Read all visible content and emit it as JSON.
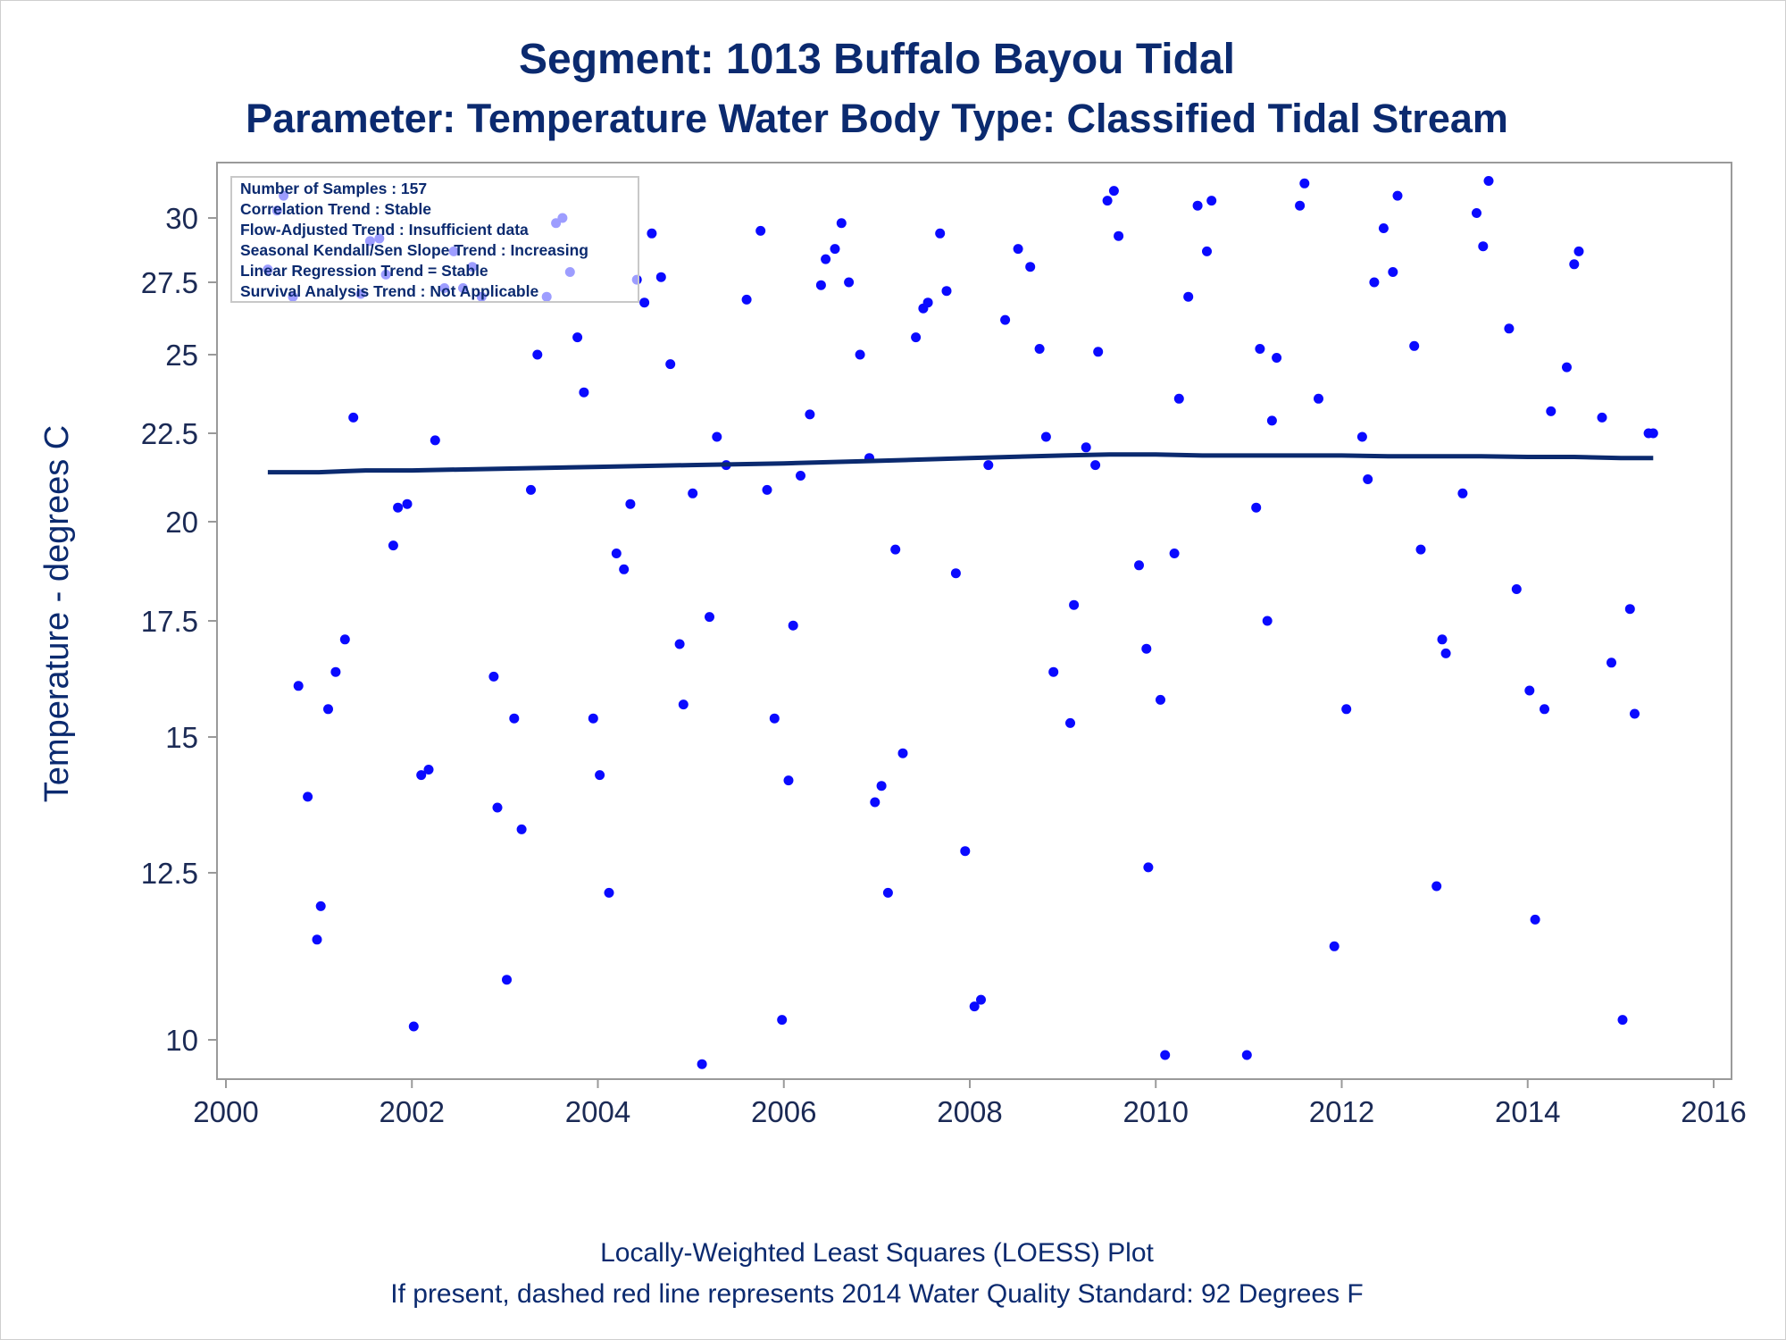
{
  "chart_data": {
    "type": "scatter",
    "title": "Segment: 1013  Buffalo Bayou Tidal",
    "subtitle": "Parameter: Temperature   Water Body Type: Classified Tidal Stream",
    "ylabel": "Temperature - degrees C",
    "xlabel": "",
    "footnotes": [
      "Locally-Weighted Least Squares (LOESS) Plot",
      "If present, dashed red line represents 2014 Water Quality Standard: 92   Degrees F"
    ],
    "stats_box": [
      "Number of Samples : 157",
      "Correlation Trend : Stable",
      "Flow-Adjusted Trend : Insufficient data",
      "Seasonal Kendall/Sen Slope Trend : Increasing",
      "Linear Regression Trend = Stable",
      "Survival Analysis Trend : Not Applicable"
    ],
    "x_ticks": [
      "2000",
      "2002",
      "2004",
      "2006",
      "2008",
      "2010",
      "2012",
      "2014",
      "2016"
    ],
    "y_ticks": [
      "10",
      "12.5",
      "15",
      "17.5",
      "20",
      "22.5",
      "25",
      "27.5",
      "30"
    ],
    "xlim": [
      2000,
      2016
    ],
    "ylim": [
      9.5,
      31.7
    ],
    "y_scale": "nonlinear (tick spacing widens at low values)",
    "y_tick_values": [
      10,
      12.5,
      15,
      17.5,
      20,
      22.5,
      25,
      27.5,
      30
    ],
    "grid": false,
    "legend": "none",
    "colors": {
      "points": "#0a0aff",
      "loess_line": "#0b2a6f",
      "text": "#0b2a6f",
      "axis": "#9a9a9a"
    },
    "series": [
      {
        "role": "samples",
        "points": [
          [
            2000.45,
            28.0
          ],
          [
            2000.55,
            30.3
          ],
          [
            2000.62,
            30.9
          ],
          [
            2000.72,
            27.0
          ],
          [
            2000.78,
            16.1
          ],
          [
            2000.88,
            13.9
          ],
          [
            2000.98,
            11.5
          ],
          [
            2001.02,
            12.0
          ],
          [
            2001.1,
            15.6
          ],
          [
            2001.18,
            16.4
          ],
          [
            2001.28,
            17.1
          ],
          [
            2001.37,
            23.0
          ],
          [
            2001.45,
            27.1
          ],
          [
            2001.55,
            29.1
          ],
          [
            2001.65,
            29.2
          ],
          [
            2001.72,
            27.8
          ],
          [
            2001.8,
            19.4
          ],
          [
            2001.85,
            20.4
          ],
          [
            2001.95,
            20.5
          ],
          [
            2002.02,
            10.2
          ],
          [
            2002.1,
            14.3
          ],
          [
            2002.18,
            14.4
          ],
          [
            2002.25,
            22.3
          ],
          [
            2002.35,
            27.3
          ],
          [
            2002.45,
            28.7
          ],
          [
            2002.55,
            27.3
          ],
          [
            2002.65,
            28.1
          ],
          [
            2002.75,
            27.0
          ],
          [
            2002.88,
            16.3
          ],
          [
            2002.92,
            13.7
          ],
          [
            2003.02,
            10.9
          ],
          [
            2003.1,
            15.4
          ],
          [
            2003.18,
            13.3
          ],
          [
            2003.28,
            20.9
          ],
          [
            2003.35,
            25.0
          ],
          [
            2003.45,
            27.0
          ],
          [
            2003.55,
            29.8
          ],
          [
            2003.62,
            30.0
          ],
          [
            2003.7,
            27.9
          ],
          [
            2003.78,
            25.6
          ],
          [
            2003.85,
            23.8
          ],
          [
            2003.95,
            15.4
          ],
          [
            2004.02,
            14.3
          ],
          [
            2004.12,
            12.2
          ],
          [
            2004.2,
            19.2
          ],
          [
            2004.28,
            18.8
          ],
          [
            2004.35,
            20.5
          ],
          [
            2004.42,
            27.6
          ],
          [
            2004.5,
            26.8
          ],
          [
            2004.58,
            29.4
          ],
          [
            2004.68,
            27.7
          ],
          [
            2004.78,
            24.7
          ],
          [
            2004.88,
            17.0
          ],
          [
            2004.92,
            15.7
          ],
          [
            2005.02,
            20.8
          ],
          [
            2005.12,
            9.6
          ],
          [
            2005.2,
            17.6
          ],
          [
            2005.28,
            22.4
          ],
          [
            2005.38,
            21.6
          ],
          [
            2005.6,
            26.9
          ],
          [
            2005.75,
            29.5
          ],
          [
            2005.82,
            20.9
          ],
          [
            2005.9,
            15.4
          ],
          [
            2005.98,
            10.3
          ],
          [
            2006.05,
            14.2
          ],
          [
            2006.1,
            17.4
          ],
          [
            2006.18,
            21.3
          ],
          [
            2006.28,
            23.1
          ],
          [
            2006.4,
            27.4
          ],
          [
            2006.45,
            28.4
          ],
          [
            2006.55,
            28.8
          ],
          [
            2006.62,
            29.8
          ],
          [
            2006.7,
            27.5
          ],
          [
            2006.82,
            25.0
          ],
          [
            2006.92,
            21.8
          ],
          [
            2006.98,
            13.8
          ],
          [
            2007.05,
            14.1
          ],
          [
            2007.12,
            12.2
          ],
          [
            2007.2,
            19.3
          ],
          [
            2007.28,
            14.7
          ],
          [
            2007.42,
            25.6
          ],
          [
            2007.5,
            26.6
          ],
          [
            2007.55,
            26.8
          ],
          [
            2007.68,
            29.4
          ],
          [
            2007.75,
            27.2
          ],
          [
            2007.85,
            18.7
          ],
          [
            2007.95,
            12.9
          ],
          [
            2008.05,
            10.5
          ],
          [
            2008.12,
            10.6
          ],
          [
            2008.2,
            21.6
          ],
          [
            2008.38,
            26.2
          ],
          [
            2008.52,
            28.8
          ],
          [
            2008.65,
            28.1
          ],
          [
            2008.75,
            25.2
          ],
          [
            2008.82,
            22.4
          ],
          [
            2008.9,
            16.4
          ],
          [
            2009.08,
            15.3
          ],
          [
            2009.12,
            17.9
          ],
          [
            2009.25,
            22.1
          ],
          [
            2009.35,
            21.6
          ],
          [
            2009.38,
            25.1
          ],
          [
            2009.48,
            30.7
          ],
          [
            2009.55,
            31.1
          ],
          [
            2009.6,
            29.3
          ],
          [
            2009.82,
            18.9
          ],
          [
            2009.9,
            16.9
          ],
          [
            2009.92,
            12.6
          ],
          [
            2010.05,
            15.8
          ],
          [
            2010.1,
            9.75
          ],
          [
            2010.2,
            19.2
          ],
          [
            2010.25,
            23.6
          ],
          [
            2010.35,
            27.0
          ],
          [
            2010.45,
            30.5
          ],
          [
            2010.55,
            28.7
          ],
          [
            2010.6,
            30.7
          ],
          [
            2010.98,
            9.75
          ],
          [
            2011.08,
            20.4
          ],
          [
            2011.12,
            25.2
          ],
          [
            2011.2,
            17.5
          ],
          [
            2011.25,
            22.9
          ],
          [
            2011.3,
            24.9
          ],
          [
            2011.55,
            30.5
          ],
          [
            2011.6,
            31.4
          ],
          [
            2011.75,
            23.6
          ],
          [
            2011.92,
            11.4
          ],
          [
            2012.05,
            15.6
          ],
          [
            2012.22,
            22.4
          ],
          [
            2012.28,
            21.2
          ],
          [
            2012.35,
            27.5
          ],
          [
            2012.45,
            29.6
          ],
          [
            2012.55,
            27.9
          ],
          [
            2012.6,
            30.9
          ],
          [
            2012.78,
            25.3
          ],
          [
            2012.85,
            19.3
          ],
          [
            2013.02,
            12.3
          ],
          [
            2013.08,
            17.1
          ],
          [
            2013.12,
            16.8
          ],
          [
            2013.3,
            20.8
          ],
          [
            2013.45,
            30.2
          ],
          [
            2013.52,
            28.9
          ],
          [
            2013.58,
            31.5
          ],
          [
            2013.8,
            25.9
          ],
          [
            2013.88,
            18.3
          ],
          [
            2014.02,
            16.0
          ],
          [
            2014.08,
            11.8
          ],
          [
            2014.18,
            15.6
          ],
          [
            2014.25,
            23.2
          ],
          [
            2014.42,
            24.6
          ],
          [
            2014.5,
            28.2
          ],
          [
            2014.55,
            28.7
          ],
          [
            2014.8,
            23.0
          ],
          [
            2014.9,
            16.6
          ],
          [
            2015.02,
            10.3
          ],
          [
            2015.1,
            17.8
          ],
          [
            2015.15,
            15.5
          ],
          [
            2015.3,
            22.5
          ],
          [
            2015.35,
            22.5
          ]
        ]
      },
      {
        "role": "loess",
        "points": [
          [
            2000.45,
            21.4
          ],
          [
            2001.0,
            21.4
          ],
          [
            2001.5,
            21.45
          ],
          [
            2002.0,
            21.45
          ],
          [
            2003.0,
            21.5
          ],
          [
            2004.0,
            21.55
          ],
          [
            2005.0,
            21.6
          ],
          [
            2006.0,
            21.65
          ],
          [
            2007.0,
            21.72
          ],
          [
            2008.0,
            21.8
          ],
          [
            2009.0,
            21.87
          ],
          [
            2009.5,
            21.9
          ],
          [
            2010.0,
            21.9
          ],
          [
            2010.5,
            21.87
          ],
          [
            2011.0,
            21.87
          ],
          [
            2011.5,
            21.87
          ],
          [
            2012.0,
            21.87
          ],
          [
            2012.5,
            21.85
          ],
          [
            2013.0,
            21.85
          ],
          [
            2013.5,
            21.85
          ],
          [
            2014.0,
            21.83
          ],
          [
            2014.5,
            21.83
          ],
          [
            2015.0,
            21.8
          ],
          [
            2015.35,
            21.8
          ]
        ]
      }
    ]
  }
}
